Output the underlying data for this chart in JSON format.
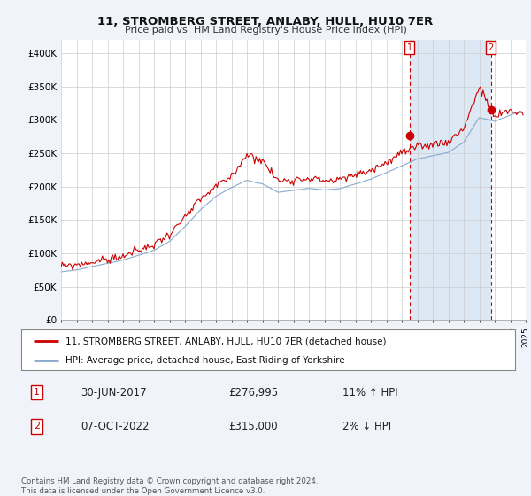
{
  "title": "11, STROMBERG STREET, ANLABY, HULL, HU10 7ER",
  "subtitle": "Price paid vs. HM Land Registry's House Price Index (HPI)",
  "legend_line1": "11, STROMBERG STREET, ANLABY, HULL, HU10 7ER (detached house)",
  "legend_line2": "HPI: Average price, detached house, East Riding of Yorkshire",
  "annotation1_label": "1",
  "annotation1_date": "30-JUN-2017",
  "annotation1_price": "£276,995",
  "annotation1_hpi": "11% ↑ HPI",
  "annotation2_label": "2",
  "annotation2_date": "07-OCT-2022",
  "annotation2_price": "£315,000",
  "annotation2_hpi": "2% ↓ HPI",
  "footer": "Contains HM Land Registry data © Crown copyright and database right 2024.\nThis data is licensed under the Open Government Licence v3.0.",
  "house_color": "#cc0000",
  "hpi_color": "#88aacc",
  "shade_color": "#dde8f5",
  "background_color": "#f0f4fa",
  "plot_bg_color": "#ffffff",
  "ylim": [
    0,
    420000
  ],
  "yticks": [
    0,
    50000,
    100000,
    150000,
    200000,
    250000,
    300000,
    350000,
    400000
  ],
  "ytick_labels": [
    "£0",
    "£50K",
    "£100K",
    "£150K",
    "£200K",
    "£250K",
    "£300K",
    "£350K",
    "£400K"
  ],
  "sale1_x": 2017.5,
  "sale1_y": 276995,
  "sale2_x": 2022.75,
  "sale2_y": 315000,
  "xmin": 1995,
  "xmax": 2025,
  "xticks": [
    1995,
    1996,
    1997,
    1998,
    1999,
    2000,
    2001,
    2002,
    2003,
    2004,
    2005,
    2006,
    2007,
    2008,
    2009,
    2010,
    2011,
    2012,
    2013,
    2014,
    2015,
    2016,
    2017,
    2018,
    2019,
    2020,
    2021,
    2022,
    2023,
    2024,
    2025
  ]
}
